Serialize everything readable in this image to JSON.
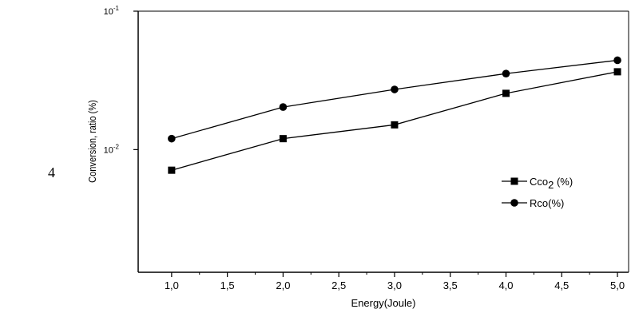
{
  "page": {
    "side_number": "4"
  },
  "chart_data": {
    "type": "line",
    "title": "",
    "xlabel": "Energy(Joule)",
    "ylabel": "Conversion, ratio (%)",
    "x_tick_labels": [
      "1,0",
      "1,5",
      "2,0",
      "2,5",
      "3,0",
      "3,5",
      "4,0",
      "4,5",
      "5,0"
    ],
    "x_ticks": [
      1.0,
      1.5,
      2.0,
      2.5,
      3.0,
      3.5,
      4.0,
      4.5,
      5.0
    ],
    "xlim": [
      0.7,
      5.1
    ],
    "y_scale": "log",
    "ylim": [
      0.0013,
      0.1
    ],
    "y_tick_labels": [
      {
        "value": 0.1,
        "base": "10",
        "exp": "-1"
      },
      {
        "value": 0.01,
        "base": "10",
        "exp": "-2"
      }
    ],
    "grid": false,
    "legend_position": "right",
    "series": [
      {
        "name_main": "Cco",
        "name_sub": "2",
        "name_suffix": " (%)",
        "marker": "square",
        "color": "#000000",
        "x": [
          1.0,
          2.0,
          3.0,
          4.0,
          5.0
        ],
        "values": [
          0.0071,
          0.012,
          0.0151,
          0.0255,
          0.0365
        ]
      },
      {
        "name_main": "Rco(%)",
        "name_sub": "",
        "name_suffix": "",
        "marker": "circle",
        "color": "#000000",
        "x": [
          1.0,
          2.0,
          3.0,
          4.0,
          5.0
        ],
        "values": [
          0.012,
          0.0203,
          0.0272,
          0.0354,
          0.0442
        ]
      }
    ]
  }
}
